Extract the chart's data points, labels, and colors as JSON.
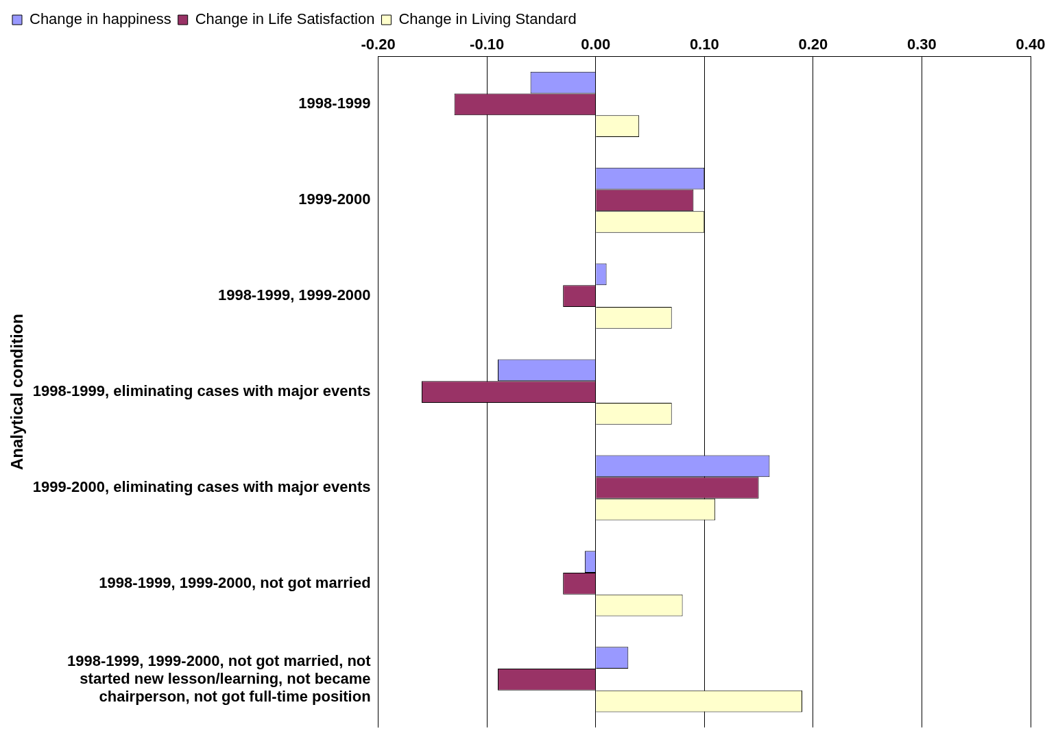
{
  "chart_data": {
    "type": "bar",
    "orientation": "horizontal",
    "ylabel": "Analytical condition",
    "categories": [
      "1998-1999",
      "1999-2000",
      "1998-1999, 1999-2000",
      "1998-1999, eliminating cases with major events",
      "1999-2000, eliminating cases with major events",
      "1998-1999, 1999-2000, not got married",
      "1998-1999, 1999-2000, not got married, not started new lesson/learning, not became chairperson, not got full-time position"
    ],
    "series": [
      {
        "name": "Change in happiness",
        "color": "#9999ff",
        "values": [
          -0.06,
          0.1,
          0.01,
          -0.09,
          0.16,
          -0.01,
          0.03
        ]
      },
      {
        "name": "Change in Life Satisfaction",
        "color": "#993366",
        "values": [
          -0.13,
          0.09,
          -0.03,
          -0.16,
          0.15,
          -0.03,
          -0.09
        ]
      },
      {
        "name": "Change in Living Standard",
        "color": "#ffffcc",
        "values": [
          0.04,
          0.1,
          0.07,
          0.07,
          0.11,
          0.08,
          0.19
        ]
      }
    ],
    "xlim": [
      -0.2,
      0.4
    ],
    "xticks": [
      {
        "value": -0.2,
        "label": "-0.20"
      },
      {
        "value": -0.1,
        "label": "-0.10"
      },
      {
        "value": 0,
        "label": "0.00"
      },
      {
        "value": 0.1,
        "label": "0.10"
      },
      {
        "value": 0.2,
        "label": "0.20"
      },
      {
        "value": 0.3,
        "label": "0.30"
      },
      {
        "value": 0.4,
        "label": "0.40"
      }
    ],
    "grid": "x",
    "legend": "top left"
  }
}
